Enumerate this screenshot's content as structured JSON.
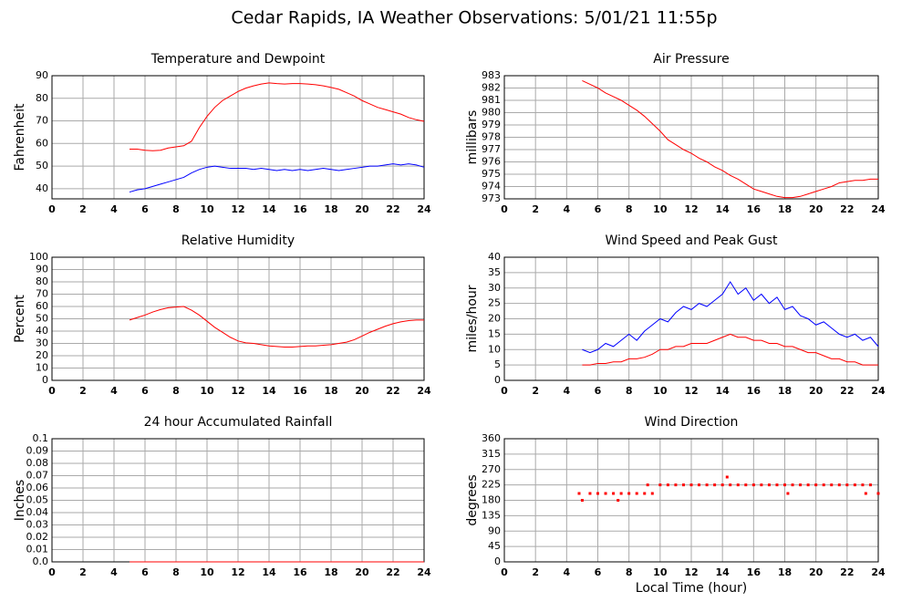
{
  "title": "Cedar Rapids, IA Weather Observations: 5/01/21 11:55p",
  "chart_data": [
    {
      "type": "line",
      "title": "Temperature and Dewpoint",
      "y_label": "Fahrenheit",
      "x": [
        5,
        5.5,
        6,
        6.5,
        7,
        7.5,
        8,
        8.5,
        9,
        9.5,
        10,
        10.5,
        11,
        11.5,
        12,
        12.5,
        13,
        13.5,
        14,
        14.5,
        15,
        15.5,
        16,
        16.5,
        17,
        17.5,
        18,
        18.5,
        19,
        19.5,
        20,
        20.5,
        21,
        21.5,
        22,
        22.5,
        23,
        23.5,
        24
      ],
      "series": [
        {
          "color": "#ff0000",
          "values": [
            57.5,
            57.5,
            57,
            56.8,
            57,
            58,
            58.5,
            59,
            61,
            67,
            72,
            76,
            79,
            81,
            83,
            84.5,
            85.5,
            86.3,
            86.8,
            86.5,
            86.3,
            86.5,
            86.5,
            86.3,
            86,
            85.5,
            84.8,
            84,
            82.5,
            81,
            79,
            77.5,
            76,
            75,
            74,
            73,
            71.5,
            70.5,
            69.8
          ]
        },
        {
          "color": "#0000ff",
          "values": [
            38.5,
            39.5,
            40,
            41,
            42,
            43,
            44,
            45,
            47,
            48.5,
            49.5,
            50,
            49.5,
            49,
            49,
            49,
            48.5,
            49,
            48.5,
            48,
            48.5,
            48,
            48.5,
            48,
            48.5,
            49,
            48.5,
            48,
            48.5,
            49,
            49.5,
            50,
            50,
            50.5,
            51,
            50.5,
            51,
            50.5,
            49.5
          ]
        }
      ],
      "xlim": [
        0,
        24
      ],
      "xticks": [
        0,
        2,
        4,
        6,
        8,
        10,
        12,
        14,
        16,
        18,
        20,
        22,
        24
      ],
      "ylim": [
        35.5,
        90
      ],
      "yticks": [
        40,
        50,
        60,
        70,
        80,
        90
      ],
      "grid": true
    },
    {
      "type": "line",
      "title": "Air Pressure",
      "y_label": "millibars",
      "x": [
        5,
        5.5,
        6,
        6.5,
        7,
        7.5,
        8,
        8.5,
        9,
        9.5,
        10,
        10.5,
        11,
        11.5,
        12,
        12.5,
        13,
        13.5,
        14,
        14.5,
        15,
        15.5,
        16,
        16.5,
        17,
        17.5,
        18,
        18.5,
        19,
        19.5,
        20,
        20.5,
        21,
        21.5,
        22,
        22.5,
        23,
        23.5,
        24
      ],
      "series": [
        {
          "color": "#ff0000",
          "values": [
            982.6,
            982.3,
            982,
            981.6,
            981.3,
            981,
            980.6,
            980.2,
            979.7,
            979.1,
            978.5,
            977.8,
            977.4,
            977,
            976.7,
            976.3,
            976,
            975.6,
            975.3,
            974.9,
            974.6,
            974.2,
            973.8,
            973.6,
            973.4,
            973.2,
            973.1,
            973.1,
            973.2,
            973.4,
            973.6,
            973.8,
            974,
            974.3,
            974.4,
            974.5,
            974.5,
            974.6,
            974.6
          ]
        }
      ],
      "xlim": [
        0,
        24
      ],
      "xticks": [
        0,
        2,
        4,
        6,
        8,
        10,
        12,
        14,
        16,
        18,
        20,
        22,
        24
      ],
      "ylim": [
        973,
        983
      ],
      "yticks": [
        973,
        974,
        975,
        976,
        977,
        978,
        979,
        980,
        981,
        982,
        983
      ],
      "grid": true
    },
    {
      "type": "line",
      "title": "Relative Humidity",
      "y_label": "Percent",
      "x": [
        5,
        5.5,
        6,
        6.5,
        7,
        7.5,
        8,
        8.5,
        9,
        9.5,
        10,
        10.5,
        11,
        11.5,
        12,
        12.5,
        13,
        13.5,
        14,
        14.5,
        15,
        15.5,
        16,
        16.5,
        17,
        17.5,
        18,
        18.5,
        19,
        19.5,
        20,
        20.5,
        21,
        21.5,
        22,
        22.5,
        23,
        23.5,
        24
      ],
      "series": [
        {
          "color": "#ff0000",
          "values": [
            49,
            51,
            53,
            55.5,
            57.5,
            59,
            59.5,
            60,
            57,
            53,
            48,
            43,
            39,
            35,
            32,
            30.5,
            30,
            29,
            28,
            27.5,
            27,
            27,
            27.5,
            28,
            28,
            28.5,
            29,
            30,
            31,
            33,
            36,
            39,
            41.5,
            44,
            46,
            47.5,
            48.5,
            49,
            49
          ]
        }
      ],
      "xlim": [
        0,
        24
      ],
      "xticks": [
        0,
        2,
        4,
        6,
        8,
        10,
        12,
        14,
        16,
        18,
        20,
        22,
        24
      ],
      "ylim": [
        0,
        100
      ],
      "yticks": [
        0,
        10,
        20,
        30,
        40,
        50,
        60,
        70,
        80,
        90,
        100
      ],
      "grid": true
    },
    {
      "type": "line",
      "title": "Wind Speed and Peak Gust",
      "y_label": "miles/hour",
      "x": [
        5,
        5.5,
        6,
        6.5,
        7,
        7.5,
        8,
        8.5,
        9,
        9.5,
        10,
        10.5,
        11,
        11.5,
        12,
        12.5,
        13,
        13.5,
        14,
        14.5,
        15,
        15.5,
        16,
        16.5,
        17,
        17.5,
        18,
        18.5,
        19,
        19.5,
        20,
        20.5,
        21,
        21.5,
        22,
        22.5,
        23,
        23.5,
        24
      ],
      "series": [
        {
          "color": "#0000ff",
          "values": [
            10,
            9,
            10,
            12,
            11,
            13,
            15,
            13,
            16,
            18,
            20,
            19,
            22,
            24,
            23,
            25,
            24,
            26,
            28,
            32,
            28,
            30,
            26,
            28,
            25,
            27,
            23,
            24,
            21,
            20,
            18,
            19,
            17,
            15,
            14,
            15,
            13,
            14,
            11
          ]
        },
        {
          "color": "#ff0000",
          "values": [
            5,
            5,
            5.5,
            5.5,
            6,
            6,
            7,
            7,
            7.5,
            8.5,
            10,
            10,
            11,
            11,
            12,
            12,
            12,
            13,
            14,
            15,
            14,
            14,
            13,
            13,
            12,
            12,
            11,
            11,
            10,
            9,
            9,
            8,
            7,
            7,
            6,
            6,
            5,
            5,
            5
          ]
        }
      ],
      "xlim": [
        0,
        24
      ],
      "xticks": [
        0,
        2,
        4,
        6,
        8,
        10,
        12,
        14,
        16,
        18,
        20,
        22,
        24
      ],
      "ylim": [
        0,
        40
      ],
      "yticks": [
        0,
        5,
        10,
        15,
        20,
        25,
        30,
        35,
        40
      ],
      "grid": true
    },
    {
      "type": "line",
      "title": "24 hour Accumulated Rainfall",
      "y_label": "Inches",
      "x": [
        5,
        24
      ],
      "series": [
        {
          "color": "#ff0000",
          "values": [
            0,
            0
          ]
        }
      ],
      "xlim": [
        0,
        24
      ],
      "xticks": [
        0,
        2,
        4,
        6,
        8,
        10,
        12,
        14,
        16,
        18,
        20,
        22,
        24
      ],
      "ylim": [
        0,
        0.1
      ],
      "yticks": [
        {
          "value": 0,
          "label": "0.0"
        },
        0.01,
        0.02,
        0.03,
        0.04,
        0.05,
        0.06,
        0.07,
        0.08,
        0.09,
        0.1
      ],
      "grid": true
    },
    {
      "type": "scatter",
      "title": "Wind Direction",
      "y_label": "degrees",
      "x_label": "Local Time (hour)",
      "x": [
        4.8,
        5,
        5.5,
        6,
        6.5,
        7,
        7.3,
        7.5,
        8,
        8.5,
        9,
        9.2,
        9.5,
        10,
        10.5,
        11,
        11.5,
        12,
        12.5,
        13,
        13.5,
        14,
        14.3,
        14.5,
        15,
        15.5,
        16,
        16.5,
        17,
        17.5,
        18,
        18.2,
        18.5,
        19,
        19.5,
        20,
        20.5,
        21,
        21.5,
        22,
        22.5,
        23,
        23.2,
        23.5,
        24
      ],
      "series": [
        {
          "color": "#ff0000",
          "values": [
            200,
            180,
            200,
            200,
            200,
            200,
            180,
            200,
            200,
            200,
            200,
            225,
            200,
            225,
            225,
            225,
            225,
            225,
            225,
            225,
            225,
            225,
            248,
            225,
            225,
            225,
            225,
            225,
            225,
            225,
            225,
            200,
            225,
            225,
            225,
            225,
            225,
            225,
            225,
            225,
            225,
            225,
            200,
            225,
            200
          ]
        }
      ],
      "xlim": [
        0,
        24
      ],
      "xticks": [
        0,
        2,
        4,
        6,
        8,
        10,
        12,
        14,
        16,
        18,
        20,
        22,
        24
      ],
      "ylim": [
        0,
        360
      ],
      "yticks": [
        0,
        45,
        90,
        135,
        180,
        225,
        270,
        315,
        360
      ],
      "grid": true
    }
  ]
}
